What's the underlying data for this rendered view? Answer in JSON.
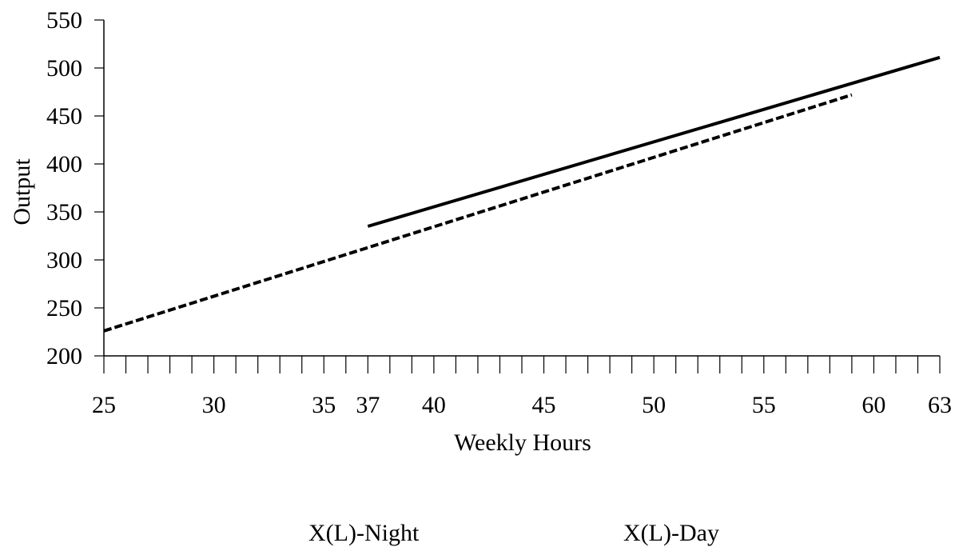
{
  "chart_data": {
    "type": "line",
    "title": "",
    "xlabel": "Weekly Hours",
    "ylabel": "Output",
    "xlim": [
      25,
      63
    ],
    "ylim": [
      200,
      550
    ],
    "x_ticks": [
      25,
      30,
      35,
      37,
      40,
      45,
      50,
      55,
      60,
      63
    ],
    "x_minor_step": 1,
    "y_ticks": [
      200,
      250,
      300,
      350,
      400,
      450,
      500,
      550
    ],
    "grid": false,
    "legend_position": "bottom",
    "series": [
      {
        "name": "X(L)-Night",
        "style": "solid",
        "color": "#000000",
        "x": [
          37,
          63
        ],
        "y": [
          335,
          511
        ]
      },
      {
        "name": "X(L)-Day",
        "style": "dashed",
        "color": "#000000",
        "x": [
          25,
          59
        ],
        "y": [
          226,
          472
        ]
      }
    ]
  }
}
